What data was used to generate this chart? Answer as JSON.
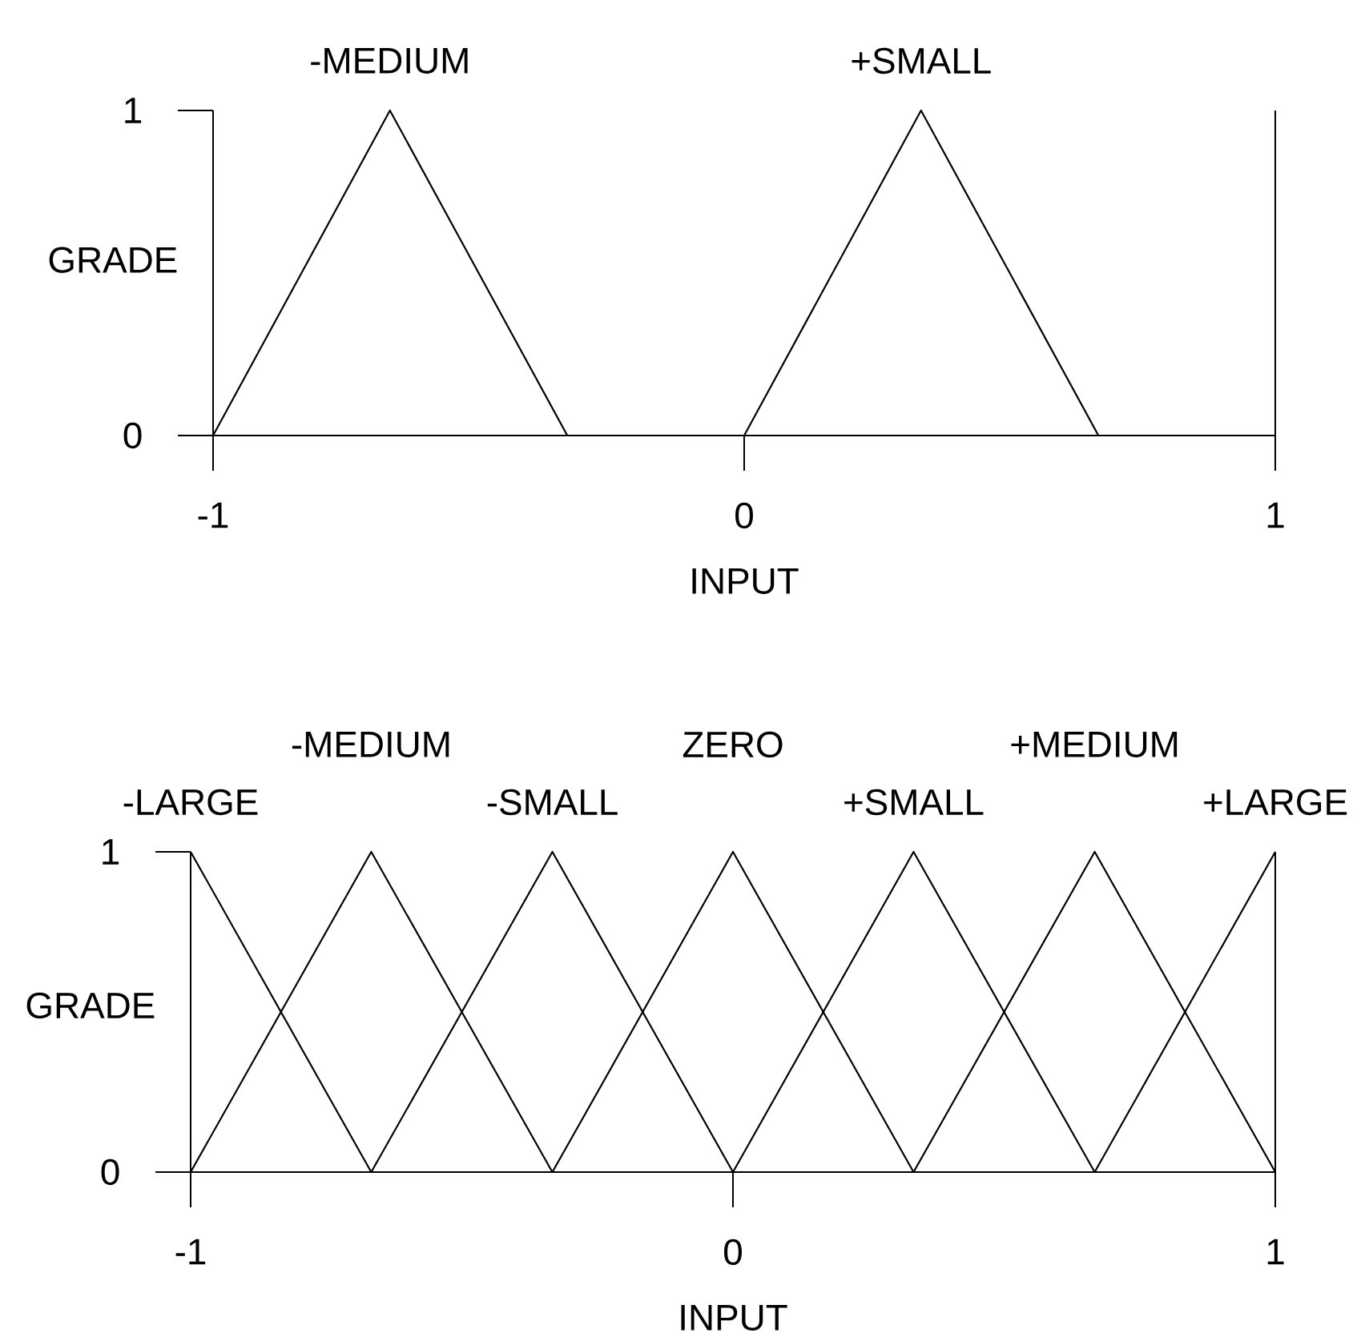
{
  "chart_data": [
    {
      "type": "line",
      "xlabel": "INPUT",
      "ylabel": "GRADE",
      "xlim": [
        -1,
        1
      ],
      "ylim": [
        0,
        1
      ],
      "xticks": [
        -1,
        0,
        1
      ],
      "yticks": [
        0,
        1
      ],
      "series": [
        {
          "name": "-MEDIUM",
          "color": "#000000",
          "x": [
            -1,
            -0.667,
            -0.333
          ],
          "values": [
            0,
            1,
            0
          ]
        },
        {
          "name": "+SMALL",
          "color": "#000000",
          "x": [
            0,
            0.333,
            0.667
          ],
          "values": [
            0,
            1,
            0
          ]
        }
      ]
    },
    {
      "type": "line",
      "xlabel": "INPUT",
      "ylabel": "GRADE",
      "xlim": [
        -1,
        1
      ],
      "ylim": [
        0,
        1
      ],
      "xticks": [
        -1,
        0,
        1
      ],
      "yticks": [
        0,
        1
      ],
      "series": [
        {
          "name": "-LARGE",
          "color": "#000000",
          "x": [
            -1,
            -0.667
          ],
          "values": [
            1,
            0
          ]
        },
        {
          "name": "-MEDIUM",
          "color": "#000000",
          "x": [
            -1,
            -0.667,
            -0.333
          ],
          "values": [
            0,
            1,
            0
          ]
        },
        {
          "name": "-SMALL",
          "color": "#000000",
          "x": [
            -0.667,
            -0.333,
            0
          ],
          "values": [
            0,
            1,
            0
          ]
        },
        {
          "name": "ZERO",
          "color": "#000000",
          "x": [
            -0.333,
            0,
            0.333
          ],
          "values": [
            0,
            1,
            0
          ]
        },
        {
          "name": "+SMALL",
          "color": "#000000",
          "x": [
            0,
            0.333,
            0.667
          ],
          "values": [
            0,
            1,
            0
          ]
        },
        {
          "name": "+MEDIUM",
          "color": "#000000",
          "x": [
            0.333,
            0.667,
            1
          ],
          "values": [
            0,
            1,
            0
          ]
        },
        {
          "name": "+LARGE",
          "color": "#000000",
          "x": [
            0.667,
            1
          ],
          "values": [
            0,
            1
          ]
        }
      ]
    }
  ]
}
